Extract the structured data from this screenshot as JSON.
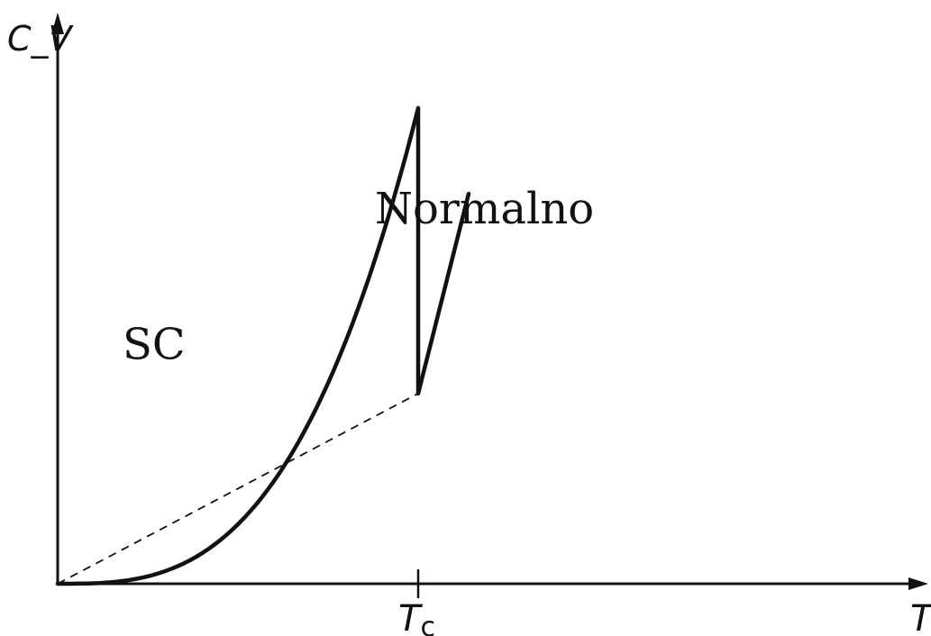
{
  "chart_data": {
    "type": "line",
    "title": "",
    "xlabel": "T",
    "ylabel": "C_V",
    "x_ticks": [
      {
        "value": 1.0,
        "main": "T",
        "sub": "c"
      }
    ],
    "xlim": [
      0,
      1.5
    ],
    "ylim": [
      0,
      1.35
    ],
    "grid": false,
    "legend": "none",
    "annotations": [
      {
        "text": "SC",
        "region": "superconducting",
        "x": 0.33,
        "y": 0.67
      },
      {
        "text": "Normalno",
        "region": "normal",
        "x": 1.33,
        "y": 1.05
      }
    ],
    "series": [
      {
        "key": "superconducting",
        "style": "solid",
        "x": [
          0,
          0.1,
          0.2,
          0.3,
          0.4,
          0.5,
          0.6,
          0.7,
          0.8,
          0.9,
          1.0
        ],
        "y": [
          0,
          0.0013,
          0.0107,
          0.036,
          0.0853,
          0.1667,
          0.288,
          0.4573,
          0.6827,
          0.972,
          1.3333
        ]
      },
      {
        "key": "jump",
        "style": "solid",
        "x": [
          1.0,
          1.0
        ],
        "y": [
          1.3333,
          0.5333
        ]
      },
      {
        "key": "normal",
        "style": "solid",
        "x": [
          1.0,
          1.14
        ],
        "y": [
          0.5333,
          1.0933
        ]
      },
      {
        "key": "normal-extrapolation",
        "style": "dashed",
        "x": [
          0,
          1.0
        ],
        "y": [
          0,
          0.5333
        ]
      }
    ]
  }
}
